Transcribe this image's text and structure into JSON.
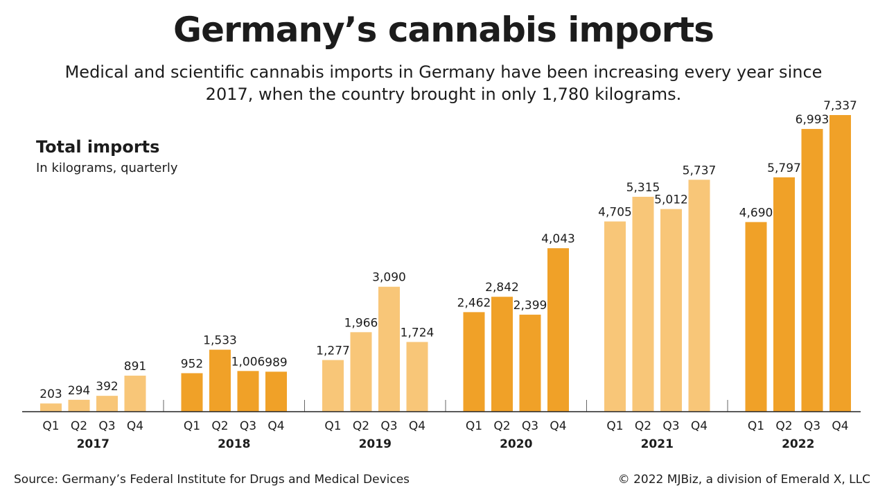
{
  "title": "Germany’s cannabis imports",
  "subtitle": "Medical and scientific cannabis imports in Germany have been increasing every year since 2017, when the country brought in only 1,780 kilograms.",
  "chart_title": "Total imports",
  "chart_subtitle": "In kilograms, quarterly",
  "source": "Source: Germany’s Federal Institute for Drugs and Medical Devices",
  "credit": "© 2022 MJBiz, a division of Emerald X, LLC",
  "colors": {
    "dark": "#f0a128",
    "light": "#f8c678",
    "axis": "#222222",
    "divider": "#666666"
  },
  "chart_data": {
    "type": "bar",
    "xlabel": "",
    "ylabel": "",
    "ylim": [
      0,
      7337
    ],
    "grid": false,
    "quarters": [
      "Q1",
      "Q2",
      "Q3",
      "Q4"
    ],
    "groups": [
      {
        "year": "2017",
        "shade": "light",
        "values": [
          203,
          294,
          392,
          891
        ],
        "labels": [
          "203",
          "294",
          "392",
          "891"
        ]
      },
      {
        "year": "2018",
        "shade": "dark",
        "values": [
          952,
          1533,
          1006,
          989
        ],
        "labels": [
          "952",
          "1,533",
          "1,006",
          "989"
        ]
      },
      {
        "year": "2019",
        "shade": "light",
        "values": [
          1277,
          1966,
          3090,
          1724
        ],
        "labels": [
          "1,277",
          "1,966",
          "3,090",
          "1,724"
        ]
      },
      {
        "year": "2020",
        "shade": "dark",
        "values": [
          2462,
          2842,
          2399,
          4043
        ],
        "labels": [
          "2,462",
          "2,842",
          "2,399",
          "4,043"
        ]
      },
      {
        "year": "2021",
        "shade": "light",
        "values": [
          4705,
          5315,
          5012,
          5737
        ],
        "labels": [
          "4,705",
          "5,315",
          "5,012",
          "5,737"
        ]
      },
      {
        "year": "2022",
        "shade": "dark",
        "values": [
          4690,
          5797,
          6993,
          7337
        ],
        "labels": [
          "4,690",
          "5,797",
          "6,993",
          "7,337"
        ]
      }
    ]
  }
}
